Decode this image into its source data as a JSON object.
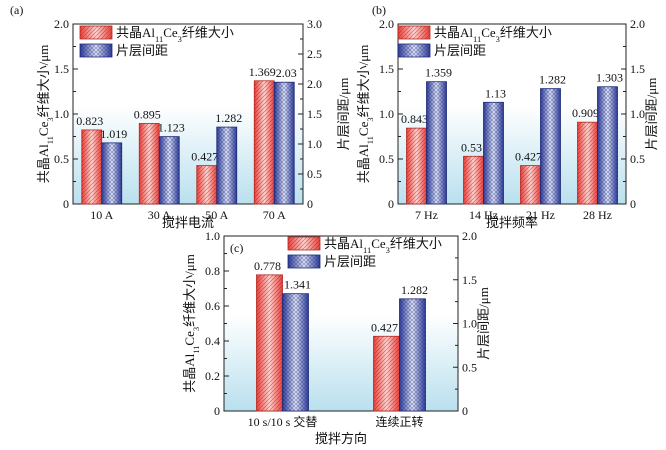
{
  "colors": {
    "red": "#e8403a",
    "red_light": "#ffd3d0",
    "blue": "#2e3d9c",
    "blue_light": "#d9dff5",
    "panel_gradient_top": "#ffffff",
    "panel_gradient_bottom": "#b9e0ee"
  },
  "legend": {
    "fiber": "共晶Al11Ce3纤维大小",
    "spacing": "片层间距"
  },
  "chart_data": [
    {
      "type": "bar",
      "panel_label": "(a)",
      "xlabel": "搅拌电流",
      "ylabel_left": "共晶Al11Ce3纤维大小/μm",
      "ylabel_right": "片层间距/μm",
      "categories": [
        "10 A",
        "30 A",
        "50 A",
        "70 A"
      ],
      "ylim_left": [
        0,
        2.0
      ],
      "ylim_right": [
        0,
        3.0
      ],
      "yticks_left": [
        "0",
        "0.5",
        "1.0",
        "1.5",
        "2.0"
      ],
      "yticks_right": [
        "0",
        "0.5",
        "1.0",
        "1.5",
        "2.0",
        "2.5",
        "3.0"
      ],
      "series": [
        {
          "name": "共晶Al11Ce3纤维大小",
          "axis": "left",
          "values": [
            0.823,
            0.895,
            0.427,
            1.369
          ],
          "labels": [
            "0.823",
            "0.895",
            "0.427",
            "1.369"
          ]
        },
        {
          "name": "片层间距",
          "axis": "right",
          "values": [
            1.019,
            1.123,
            1.282,
            2.03
          ],
          "labels": [
            "1.019",
            "1.123",
            "1.282",
            "2.03"
          ]
        }
      ]
    },
    {
      "type": "bar",
      "panel_label": "(b)",
      "xlabel": "搅拌频率",
      "ylabel_left": "共晶Al11Ce3纤维大小/μm",
      "ylabel_right": "片层间距/μm",
      "categories": [
        "7 Hz",
        "14 Hz",
        "21 Hz",
        "28 Hz"
      ],
      "ylim_left": [
        0,
        2.0
      ],
      "ylim_right": [
        0,
        2.0
      ],
      "yticks_left": [
        "0",
        "0.5",
        "1.0",
        "1.5",
        "2.0"
      ],
      "yticks_right": [
        "0",
        "0.5",
        "1.0",
        "1.5",
        "2.0"
      ],
      "series": [
        {
          "name": "共晶Al11Ce3纤维大小",
          "axis": "left",
          "values": [
            0.843,
            0.53,
            0.427,
            0.909
          ],
          "labels": [
            "0.843",
            "0.53",
            "0.427",
            "0.909"
          ]
        },
        {
          "name": "片层间距",
          "axis": "right",
          "values": [
            1.359,
            1.13,
            1.282,
            1.303
          ],
          "labels": [
            "1.359",
            "1.13",
            "1.282",
            "1.303"
          ]
        }
      ]
    },
    {
      "type": "bar",
      "panel_label": "(c)",
      "xlabel": "搅拌方向",
      "ylabel_left": "共晶Al11Ce3纤维大小/μm",
      "ylabel_right": "片层间距/μm",
      "categories": [
        "10 s/10 s 交替",
        "连续正转"
      ],
      "ylim_left": [
        0,
        1.0
      ],
      "ylim_right": [
        0,
        2.0
      ],
      "yticks_left": [
        "0",
        "0.2",
        "0.4",
        "0.6",
        "0.8",
        "1.0"
      ],
      "yticks_right": [
        "0",
        "0.5",
        "1.0",
        "1.5",
        "2.0"
      ],
      "series": [
        {
          "name": "共晶Al11Ce3纤维大小",
          "axis": "left",
          "values": [
            0.778,
            0.427
          ],
          "labels": [
            "0.778",
            "0.427"
          ]
        },
        {
          "name": "片层间距",
          "axis": "right",
          "values": [
            1.341,
            1.282
          ],
          "labels": [
            "1.341",
            "1.282"
          ]
        }
      ]
    }
  ]
}
